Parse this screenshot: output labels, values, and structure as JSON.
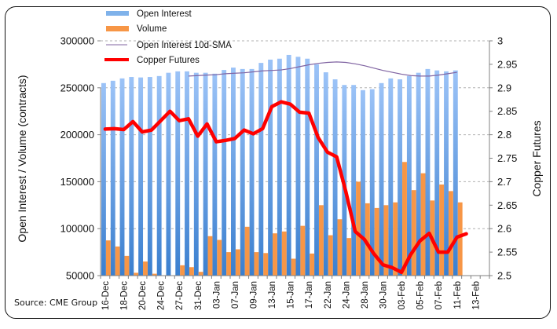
{
  "chart_data": {
    "type": "bar",
    "title": "",
    "source": "Source: CME Group",
    "ylabel": "Open Interest / Volume (contracts)",
    "y2label": "Copper Futures",
    "ylim": [
      50000,
      300000
    ],
    "y2lim": [
      2.5,
      3.0
    ],
    "yticks": [
      "300000",
      "250000",
      "200000",
      "150000",
      "100000",
      "50000"
    ],
    "y2ticks": [
      "3",
      "2.95",
      "2.9",
      "2.85",
      "2.8",
      "2.75",
      "2.7",
      "2.65",
      "2.6",
      "2.55",
      "2.5"
    ],
    "category_count": 42,
    "xtick_labels": [
      "16-Dec",
      "18-Dec",
      "20-Dec",
      "24-Dec",
      "27-Dec",
      "31-Dec",
      "03-Jan",
      "07-Jan",
      "09-Jan",
      "13-Jan",
      "15-Jan",
      "17-Jan",
      "22-Jan",
      "24-Jan",
      "28-Jan",
      "30-Jan",
      "03-Feb",
      "05-Feb",
      "07-Feb",
      "11-Feb",
      "13-Feb"
    ],
    "grid": true,
    "legend_position": "top-left",
    "series": [
      {
        "name": "Open Interest",
        "kind": "bar",
        "axis": "left",
        "color": "#5b9bd5",
        "values": [
          255000,
          257500,
          260000,
          261500,
          261000,
          261500,
          262500,
          266000,
          267500,
          267500,
          266000,
          266000,
          265000,
          269000,
          271500,
          270000,
          270000,
          276500,
          280000,
          281000,
          285000,
          283000,
          281000,
          275000,
          266500,
          259000,
          253000,
          253000,
          247500,
          248500,
          255000,
          260000,
          259000,
          262500,
          266000,
          270000,
          268500,
          267500,
          268500
        ]
      },
      {
        "name": "Volume",
        "kind": "bar",
        "axis": "left",
        "color": "#f79646",
        "values": [
          87500,
          81000,
          71000,
          53000,
          65000,
          52000,
          50000,
          50000,
          61000,
          59000,
          54000,
          92000,
          88000,
          75000,
          78000,
          102000,
          75000,
          74000,
          95000,
          97000,
          68000,
          103000,
          73500,
          125000,
          93000,
          110000,
          90000,
          150000,
          127000,
          122000,
          125000,
          128000,
          171000,
          141000,
          159000,
          130000,
          147000,
          140000,
          128000
        ]
      },
      {
        "name": "Open Interest 10d-SMA",
        "kind": "line",
        "axis": "left",
        "color": "#8064a2",
        "start_index": 9,
        "values": [
          262500,
          263000,
          263500,
          264000,
          265000,
          265500,
          266000,
          267000,
          268000,
          268500,
          269000,
          270500,
          272500,
          274500,
          276000,
          277000,
          277500,
          277000,
          275500,
          273500,
          271000,
          268500,
          266500,
          264500,
          263000,
          262500,
          262500,
          263500,
          265000,
          266500
        ]
      },
      {
        "name": "Copper Futures",
        "kind": "line",
        "axis": "right",
        "color": "#ff0000",
        "values": [
          2.812,
          2.813,
          2.811,
          2.828,
          2.806,
          2.81,
          2.83,
          2.85,
          2.83,
          2.834,
          2.797,
          2.823,
          2.785,
          2.788,
          2.792,
          2.81,
          2.802,
          2.813,
          2.86,
          2.87,
          2.865,
          2.848,
          2.846,
          2.794,
          2.763,
          2.753,
          2.678,
          2.594,
          2.577,
          2.547,
          2.523,
          2.517,
          2.507,
          2.545,
          2.574,
          2.59,
          2.55,
          2.55,
          2.582,
          2.589
        ]
      }
    ]
  }
}
